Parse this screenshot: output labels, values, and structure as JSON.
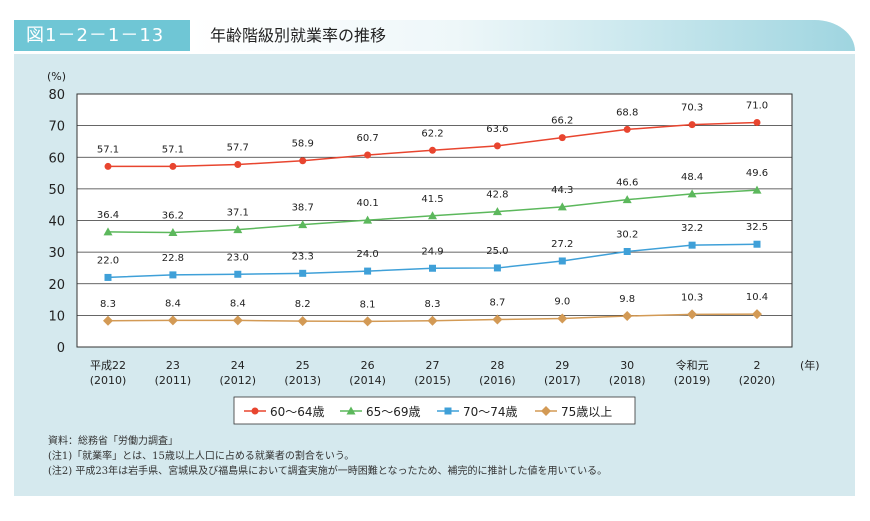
{
  "header": {
    "figure_number": "図1－2－1－13",
    "title": "年齢階級別就業率の推移"
  },
  "chart_data": {
    "type": "line",
    "ylabel": "(%)",
    "xlabel": "(年)",
    "ylim": [
      0,
      80
    ],
    "yticks": [
      0,
      10,
      20,
      30,
      40,
      50,
      60,
      70,
      80
    ],
    "grid": true,
    "legend_position": "bottom",
    "categories": [
      [
        "平成22",
        "(2010)"
      ],
      [
        "23",
        "(2011)"
      ],
      [
        "24",
        "(2012)"
      ],
      [
        "25",
        "(2013)"
      ],
      [
        "26",
        "(2014)"
      ],
      [
        "27",
        "(2015)"
      ],
      [
        "28",
        "(2016)"
      ],
      [
        "29",
        "(2017)"
      ],
      [
        "30",
        "(2018)"
      ],
      [
        "令和元",
        "(2019)"
      ],
      [
        "2",
        "(2020)"
      ]
    ],
    "series": [
      {
        "name": "60～64歳",
        "color": "#e8452f",
        "marker": "circle",
        "values": [
          57.1,
          57.1,
          57.7,
          58.9,
          60.7,
          62.2,
          63.6,
          66.2,
          68.8,
          70.3,
          71.0
        ]
      },
      {
        "name": "65～69歳",
        "color": "#5cb85c",
        "marker": "triangle",
        "values": [
          36.4,
          36.2,
          37.1,
          38.7,
          40.1,
          41.5,
          42.8,
          44.3,
          46.6,
          48.4,
          49.6
        ]
      },
      {
        "name": "70～74歳",
        "color": "#3fa0d8",
        "marker": "square",
        "values": [
          22.0,
          22.8,
          23.0,
          23.3,
          24.0,
          24.9,
          25.0,
          27.2,
          30.2,
          32.2,
          32.5
        ]
      },
      {
        "name": "75歳以上",
        "color": "#d39a55",
        "marker": "diamond",
        "values": [
          8.3,
          8.4,
          8.4,
          8.2,
          8.1,
          8.3,
          8.7,
          9.0,
          9.8,
          10.3,
          10.4
        ]
      }
    ]
  },
  "notes": [
    "資料：総務省「労働力調査」",
    "(注1)「就業率」とは、15歳以上人口に占める就業者の割合をいう。",
    "(注2) 平成23年は岩手県、宮城県及び福島県において調査実施が一時困難となったため、補完的に推計した値を用いている。"
  ]
}
